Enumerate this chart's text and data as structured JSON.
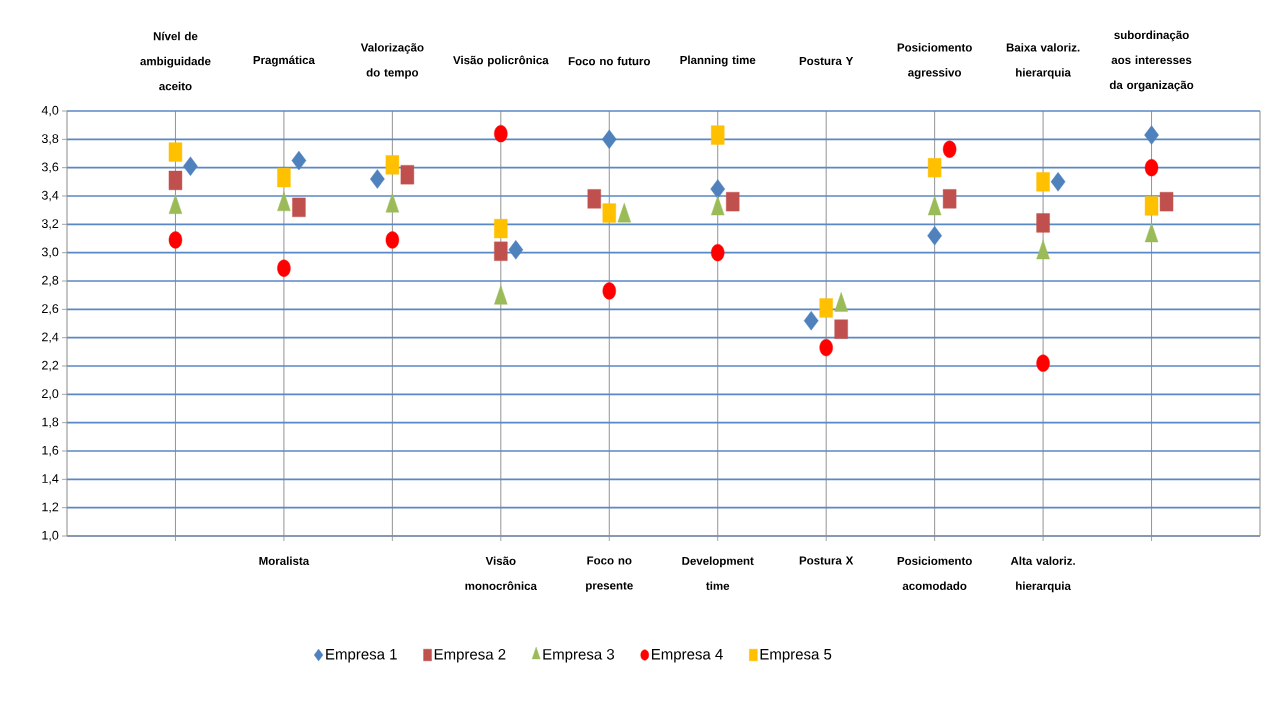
{
  "chart_data": {
    "type": "scatter",
    "categories": [
      null,
      "Moralista",
      null,
      "Visão monocrônica",
      "Foco no presente",
      "Development time",
      "Postura X",
      "Posiciomento acomodado",
      "Alta valoriz. hierarquia",
      null
    ],
    "annotations": [
      "Nível de ambiguidade aceito",
      "Pragmática",
      "Valorização do tempo",
      "Visão policrônica",
      "Foco no futuro",
      "Planning time",
      "Postura Y",
      "Posiciomento agressivo",
      "Baixa valoriz. hierarquia",
      "subordinação aos interesses da organização"
    ],
    "ylim": [
      1,
      4
    ],
    "yticks": [
      {
        "value": 1.0,
        "label": "1,0"
      },
      {
        "value": 1.2,
        "label": "1,2"
      },
      {
        "value": 1.4,
        "label": "1,4"
      },
      {
        "value": 1.6,
        "label": "1,6"
      },
      {
        "value": 1.8,
        "label": "1,8"
      },
      {
        "value": 2.0,
        "label": "2,0"
      },
      {
        "value": 2.2,
        "label": "2,2"
      },
      {
        "value": 2.4,
        "label": "2,4"
      },
      {
        "value": 2.6,
        "label": "2,6"
      },
      {
        "value": 2.8,
        "label": "2,8"
      },
      {
        "value": 3.0,
        "label": "3,0"
      },
      {
        "value": 3.2,
        "label": "3,2"
      },
      {
        "value": 3.4,
        "label": "3,4"
      },
      {
        "value": 3.6,
        "label": "3,6"
      },
      {
        "value": 3.8,
        "label": "3,8"
      },
      {
        "value": 4.0,
        "label": "4,0"
      }
    ],
    "grid": true,
    "legend": "bottom",
    "series": [
      {
        "name": "Empresa 1",
        "color": "#4f81bd",
        "marker": "diamond",
        "values": [
          3.61,
          3.65,
          3.52,
          3.02,
          3.8,
          3.45,
          2.52,
          3.12,
          3.5,
          3.83
        ]
      },
      {
        "name": "Empresa 2",
        "color": "#c0504d",
        "marker": "square",
        "values": [
          3.51,
          3.32,
          3.55,
          3.01,
          3.38,
          3.36,
          2.46,
          3.38,
          3.21,
          3.36
        ]
      },
      {
        "name": "Empresa 3",
        "color": "#9bbb59",
        "marker": "triangle",
        "values": [
          3.32,
          3.34,
          3.33,
          2.68,
          3.26,
          3.31,
          2.63,
          3.31,
          3.0,
          3.12
        ]
      },
      {
        "name": "Empresa 4",
        "color": "#ff0000",
        "marker": "circle",
        "values": [
          3.09,
          2.89,
          3.09,
          3.84,
          2.73,
          3.0,
          2.33,
          3.73,
          2.22,
          3.6
        ]
      },
      {
        "name": "Empresa 5",
        "color": "#ffc000",
        "marker": "square",
        "values": [
          3.71,
          3.53,
          3.62,
          3.17,
          3.28,
          3.83,
          2.61,
          3.6,
          3.5,
          3.33
        ]
      }
    ]
  }
}
